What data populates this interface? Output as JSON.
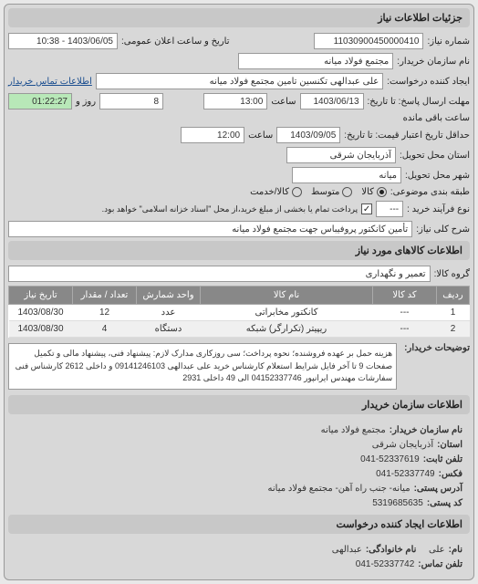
{
  "header_title": "جزئیات اطلاعات نیاز",
  "request_number_label": "شماره نیاز:",
  "request_number": "11030900450000410",
  "announce_datetime_label": "تاریخ و ساعت اعلان عمومی:",
  "announce_datetime": "1403/06/05 - 10:38",
  "buyer_name_label": "نام سازمان خریدار:",
  "buyer_name": "مجتمع فولاد میانه",
  "requester_label": "ایجاد کننده درخواست:",
  "requester": "علی عبدالهی تکنسین تامین مجتمع فولاد میانه",
  "buyer_contact_btn": "اطلاعات تماس خریدار",
  "deadline_send_label": "مهلت ارسال پاسخ: تا تاریخ:",
  "deadline_send_date": "1403/06/13",
  "deadline_send_time_label": "ساعت",
  "deadline_send_time": "13:00",
  "remaining_days": "8",
  "remaining_days_label": "روز و",
  "remaining_time": "01:22:27",
  "remaining_time_label": "ساعت باقی مانده",
  "validity_label": "حداقل تاریخ اعتبار قیمت: تا تاریخ:",
  "validity_date": "1403/09/05",
  "validity_time_label": "ساعت",
  "validity_time": "12:00",
  "delivery_province_label": "استان محل تحویل:",
  "delivery_province": "آذربایجان شرقی",
  "delivery_city_label": "شهر محل تحویل:",
  "delivery_city": "میانه",
  "budget_type_label": "طبقه بندی موضوعی:",
  "budget_goods": "کالا",
  "budget_service": "کالا/خدمت",
  "budget_medium": "متوسط",
  "contract_type_label": "نوع فرآیند خرید :",
  "contract_type_value": "پرداخت تمام یا بخشی از مبلغ خرید،از محل \"اسناد خزانه اسلامی\" خواهد بود.",
  "contract_type_select": "---",
  "subject_label": "شرح کلی نیاز:",
  "subject": "تأمین کانکتور پروفیباس جهت مجتمع فولاد میانه",
  "goods_section_title": "اطلاعات کالاهای مورد نیاز",
  "goods_group_label": "گروه کالا:",
  "goods_group": "تعمیر و نگهداری",
  "table": {
    "columns": [
      "ردیف",
      "کد کالا",
      "نام کالا",
      "واحد شمارش",
      "تعداد / مقدار",
      "تاریخ نیاز"
    ],
    "rows": [
      [
        "1",
        "---",
        "کانکتور مخابراتی",
        "عدد",
        "12",
        "1403/08/30"
      ],
      [
        "2",
        "---",
        "ریپیتر (تکرارگر) شبکه",
        "دستگاه",
        "4",
        "1403/08/30"
      ]
    ],
    "col_widths": [
      "36px",
      "70px",
      "auto",
      "70px",
      "70px",
      "70px"
    ]
  },
  "vendor_notes_label": "توضیحات خریدار:",
  "vendor_notes": "هزینه حمل بر عهده فروشنده؛ نحوه پرداخت؛ سی روزکاری مدارک لازم: پیشنهاد فنی، پیشنهاد مالی و تکمیل صفحات 9 تا آخر فایل شرایط استعلام کارشناس خرید علی عبدالهی 09141246103 و داخلی 2612 کارشناس فنی سفارشات مهندس ایرانپور 04152337746 الی 49 داخلی 2931",
  "buyer_org_section": "اطلاعات سازمان خریدار",
  "org_name_label": "نام سازمان خریدار:",
  "org_name": "مجتمع فولاد میانه",
  "org_province_label": "استان:",
  "org_province": "آذربایجان شرقی",
  "phone_label": "تلفن ثابت:",
  "phone": "041-52337619",
  "fax_label": "فکس:",
  "fax": "041-52337749",
  "address_label": "آدرس پستی:",
  "address": "میانه- جنب راه آهن- مجتمع فولاد میانه",
  "postal_label": "کد پستی:",
  "postal": "5319685635",
  "creator_section": "اطلاعات ایجاد کننده درخواست",
  "creator_name_label": "نام:",
  "creator_name": "علی",
  "creator_family_label": "نام خانوادگی:",
  "creator_family": "عبدالهی",
  "creator_phone_label": "تلفن تماس:",
  "creator_phone": "041-52337742"
}
